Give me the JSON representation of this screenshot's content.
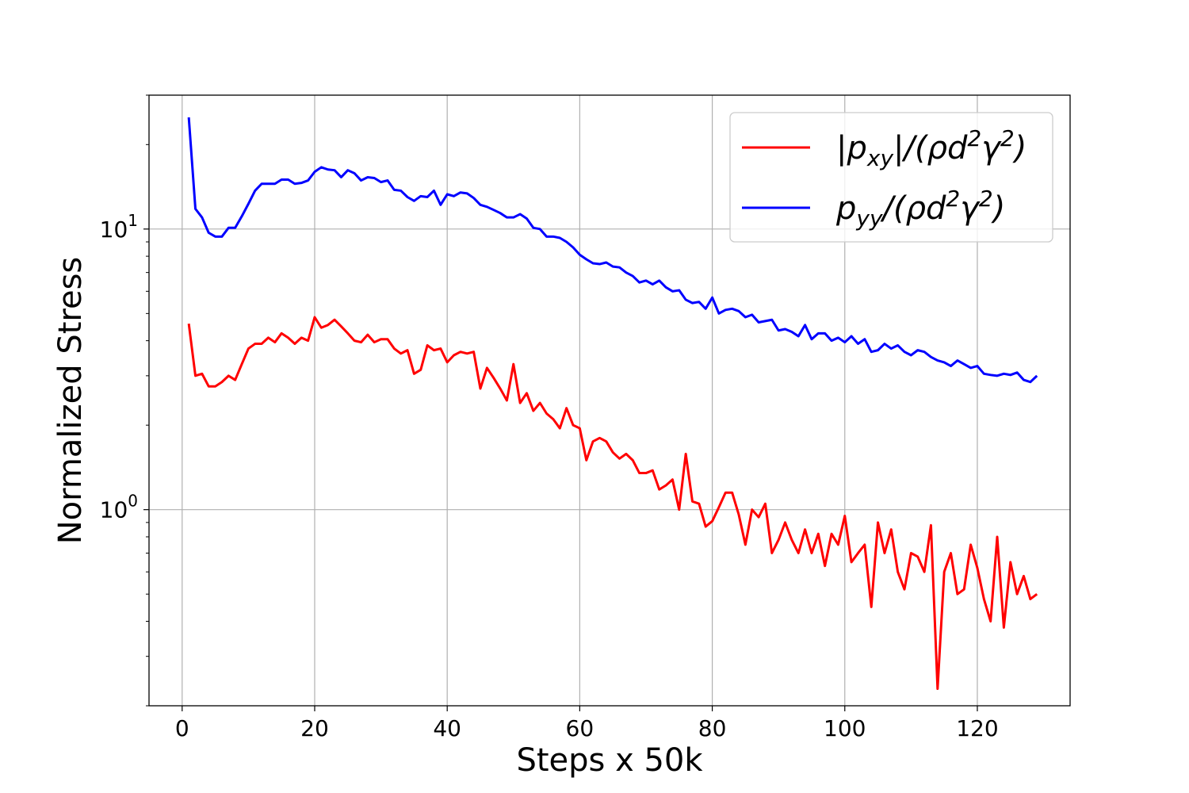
{
  "chart_data": {
    "type": "line",
    "title": "",
    "xlabel": "Steps x 50k",
    "ylabel": "Normalized Stress",
    "yscale": "log",
    "xlim": [
      -5,
      134
    ],
    "ylim": [
      0.2,
      30
    ],
    "grid": true,
    "legend_position": "top-right",
    "x_ticks": [
      0,
      20,
      40,
      60,
      80,
      100,
      120
    ],
    "x_tick_labels": [
      "0",
      "20",
      "40",
      "60",
      "80",
      "100",
      "120"
    ],
    "y_ticks": [
      1,
      10
    ],
    "y_tick_labels": [
      {
        "base": "10",
        "exp": "0"
      },
      {
        "base": "10",
        "exp": "1"
      }
    ],
    "series": [
      {
        "name": "|p_xy|/(ρd²γ²)",
        "legend_label": {
          "main": "|p",
          "sub": "xy",
          "mid": "|/(ρd",
          "sup1": "2",
          "mid2": "γ",
          "sup2": "2",
          "end": ")"
        },
        "color": "#ff0000",
        "values": [
          4.6,
          3.0,
          3.05,
          2.75,
          2.75,
          2.85,
          3.0,
          2.9,
          3.3,
          3.75,
          3.9,
          3.9,
          4.1,
          3.95,
          4.25,
          4.1,
          3.9,
          4.1,
          4.0,
          4.85,
          4.45,
          4.55,
          4.75,
          4.5,
          4.25,
          4.0,
          3.95,
          4.2,
          3.95,
          4.05,
          4.05,
          3.75,
          3.6,
          3.7,
          3.05,
          3.15,
          3.85,
          3.7,
          3.75,
          3.35,
          3.55,
          3.65,
          3.6,
          3.65,
          2.7,
          3.2,
          2.95,
          2.7,
          2.45,
          3.3,
          2.4,
          2.6,
          2.25,
          2.4,
          2.2,
          2.1,
          1.95,
          2.3,
          2.0,
          1.95,
          1.5,
          1.75,
          1.8,
          1.75,
          1.6,
          1.52,
          1.58,
          1.5,
          1.35,
          1.35,
          1.38,
          1.18,
          1.22,
          1.28,
          1.0,
          1.58,
          1.07,
          1.05,
          0.87,
          0.91,
          1.02,
          1.15,
          1.15,
          0.96,
          0.75,
          1.0,
          0.94,
          1.05,
          0.7,
          0.78,
          0.9,
          0.78,
          0.7,
          0.85,
          0.7,
          0.82,
          0.63,
          0.82,
          0.75,
          0.95,
          0.65,
          0.7,
          0.75,
          0.45,
          0.9,
          0.7,
          0.85,
          0.6,
          0.52,
          0.7,
          0.68,
          0.6,
          0.88,
          0.23,
          0.6,
          0.7,
          0.5,
          0.52,
          0.75,
          0.62,
          0.48,
          0.4,
          0.8,
          0.38,
          0.65,
          0.5,
          0.58,
          0.48,
          0.5
        ]
      },
      {
        "name": "p_yy/(ρd²γ²)",
        "legend_label": {
          "main": "p",
          "sub": "yy",
          "mid": "/(ρd",
          "sup1": "2",
          "mid2": "γ",
          "sup2": "2",
          "end": ")"
        },
        "color": "#0000ff",
        "values": [
          25.0,
          11.8,
          11.0,
          9.7,
          9.4,
          9.4,
          10.1,
          10.1,
          11.1,
          12.3,
          13.7,
          14.5,
          14.5,
          14.5,
          15.0,
          15.0,
          14.5,
          14.6,
          14.9,
          16.0,
          16.6,
          16.3,
          16.2,
          15.3,
          16.2,
          15.8,
          14.9,
          15.3,
          15.2,
          14.7,
          14.9,
          13.8,
          13.7,
          13.0,
          12.6,
          13.1,
          13.0,
          13.7,
          12.2,
          13.3,
          13.1,
          13.5,
          13.4,
          12.9,
          12.2,
          12.0,
          11.7,
          11.4,
          11.0,
          11.0,
          11.3,
          10.9,
          10.1,
          10.0,
          9.4,
          9.4,
          9.3,
          9.0,
          8.6,
          8.1,
          7.8,
          7.55,
          7.5,
          7.6,
          7.35,
          7.3,
          7.0,
          6.8,
          6.45,
          6.55,
          6.35,
          6.55,
          6.2,
          6.0,
          6.05,
          5.6,
          5.45,
          5.5,
          5.2,
          5.7,
          5.0,
          5.15,
          5.2,
          5.1,
          4.85,
          4.95,
          4.65,
          4.7,
          4.75,
          4.35,
          4.4,
          4.3,
          4.15,
          4.55,
          4.05,
          4.25,
          4.25,
          4.0,
          4.1,
          3.95,
          4.15,
          3.9,
          4.05,
          3.65,
          3.7,
          3.9,
          3.75,
          3.85,
          3.65,
          3.55,
          3.7,
          3.65,
          3.5,
          3.4,
          3.35,
          3.25,
          3.4,
          3.3,
          3.2,
          3.25,
          3.05,
          3.02,
          3.0,
          3.05,
          3.02,
          3.08,
          2.9,
          2.85,
          3.0
        ]
      }
    ]
  }
}
